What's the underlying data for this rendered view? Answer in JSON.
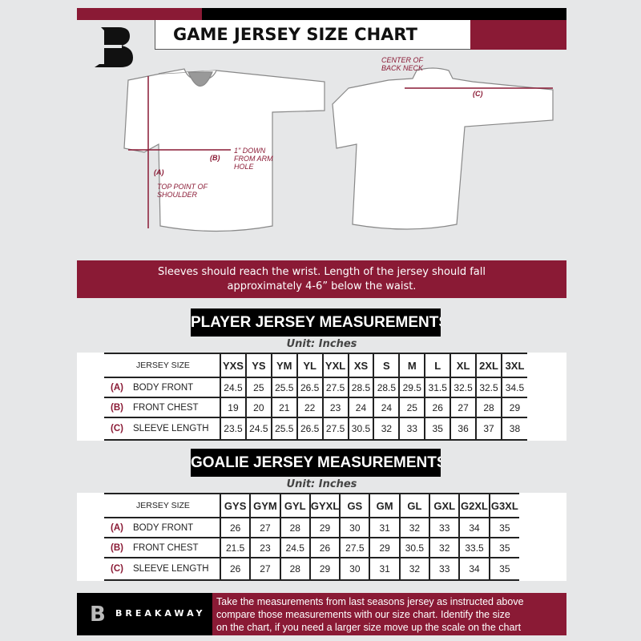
{
  "header": {
    "title": "GAME JERSEY SIZE CHART",
    "brand_color": "#8a1a35"
  },
  "diagram": {
    "label_a": "(A)",
    "label_a_desc": "TOP POINT OF SHOULDER",
    "label_b": "(B)",
    "label_b_desc": "1\" DOWN FROM ARM HOLE",
    "label_c": "(C)",
    "label_c_desc": "CENTER OF BACK NECK"
  },
  "banner": {
    "line1": "Sleeves should reach the wrist. Length of the jersey should fall",
    "line2": "approximately 4-6” below the waist."
  },
  "player": {
    "title": "PLAYER JERSEY MEASUREMENTS",
    "unit": "Unit: Inches",
    "size_label": "JERSEY SIZE",
    "sizes": [
      "YXS",
      "YS",
      "YM",
      "YL",
      "YXL",
      "XS",
      "S",
      "M",
      "L",
      "XL",
      "2XL",
      "3XL"
    ],
    "rows": [
      {
        "letter": "(A)",
        "name": "BODY FRONT",
        "values": [
          "24.5",
          "25",
          "25.5",
          "26.5",
          "27.5",
          "28.5",
          "28.5",
          "29.5",
          "31.5",
          "32.5",
          "32.5",
          "34.5"
        ]
      },
      {
        "letter": "(B)",
        "name": "FRONT CHEST",
        "values": [
          "19",
          "20",
          "21",
          "22",
          "23",
          "24",
          "24",
          "25",
          "26",
          "27",
          "28",
          "29"
        ]
      },
      {
        "letter": "(C)",
        "name": "SLEEVE LENGTH",
        "values": [
          "23.5",
          "24.5",
          "25.5",
          "26.5",
          "27.5",
          "30.5",
          "32",
          "33",
          "35",
          "36",
          "37",
          "38"
        ]
      }
    ]
  },
  "goalie": {
    "title": "GOALIE JERSEY MEASUREMENTS",
    "unit": "Unit: Inches",
    "size_label": "JERSEY SIZE",
    "sizes": [
      "GYS",
      "GYM",
      "GYL",
      "GYXL",
      "GS",
      "GM",
      "GL",
      "GXL",
      "G2XL",
      "G3XL"
    ],
    "rows": [
      {
        "letter": "(A)",
        "name": "BODY FRONT",
        "values": [
          "26",
          "27",
          "28",
          "29",
          "30",
          "31",
          "32",
          "33",
          "34",
          "35"
        ]
      },
      {
        "letter": "(B)",
        "name": "FRONT CHEST",
        "values": [
          "21.5",
          "23",
          "24.5",
          "26",
          "27.5",
          "29",
          "30.5",
          "32",
          "33.5",
          "35"
        ]
      },
      {
        "letter": "(C)",
        "name": "SLEEVE LENGTH",
        "values": [
          "26",
          "27",
          "28",
          "29",
          "30",
          "31",
          "32",
          "33",
          "34",
          "35"
        ]
      }
    ]
  },
  "footer": {
    "brand": "BREAKAWAY",
    "text1": "Take the measurements from last seasons jersey as instructed above",
    "text2": "compare those measurements  with our size chart. Identify the size",
    "text3": "on the chart, if you need a larger size move up the scale on the chart"
  }
}
